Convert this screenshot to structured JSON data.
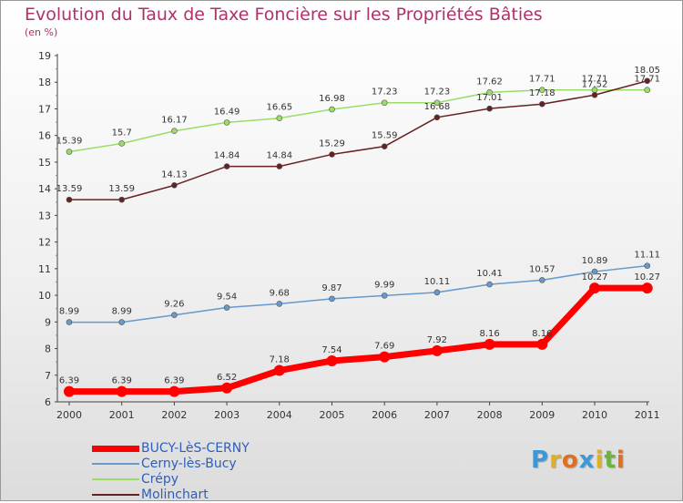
{
  "chart_data": {
    "type": "line",
    "title": "Evolution du Taux de Taxe Foncière sur les Propriétés Bâties",
    "ylabel": "(en %)",
    "xlabel": "",
    "x": [
      "2000",
      "2001",
      "2002",
      "2003",
      "2004",
      "2005",
      "2006",
      "2007",
      "2008",
      "2009",
      "2010",
      "2011"
    ],
    "ylim": [
      6,
      19
    ],
    "yticks": [
      "6",
      "7",
      "8",
      "9",
      "10",
      "11",
      "12",
      "13",
      "14",
      "15",
      "16",
      "17",
      "18",
      "19"
    ],
    "grid": false,
    "series": [
      {
        "name": "BUCY-LèS-CERNY",
        "color": "#ff0000",
        "values": [
          6.39,
          6.39,
          6.39,
          6.52,
          7.18,
          7.54,
          7.69,
          7.92,
          8.16,
          8.16,
          10.27,
          10.27
        ],
        "labels": [
          "6.39",
          "6.39",
          "6.39",
          "6.52",
          "7.18",
          "7.54",
          "7.69",
          "7.92",
          "8.16",
          "8.16",
          "10.27",
          "10.27"
        ]
      },
      {
        "name": "Cerny-lès-Bucy",
        "color": "#6699cc",
        "values": [
          8.99,
          8.99,
          9.26,
          9.54,
          9.68,
          9.87,
          9.99,
          10.11,
          10.41,
          10.57,
          10.89,
          11.11
        ],
        "labels": [
          "8.99",
          "8.99",
          "9.26",
          "9.54",
          "9.68",
          "9.87",
          "9.99",
          "10.11",
          "10.41",
          "10.57",
          "10.89",
          "11.11"
        ]
      },
      {
        "name": "Crépy",
        "color": "#99dd66",
        "values": [
          15.39,
          15.7,
          16.17,
          16.49,
          16.65,
          16.98,
          17.23,
          17.23,
          17.62,
          17.71,
          17.71,
          17.71
        ],
        "labels": [
          "15.39",
          "15.7",
          "16.17",
          "16.49",
          "16.65",
          "16.98",
          "17.23",
          "17.23",
          "17.62",
          "17.71",
          "17.71",
          "17.71"
        ]
      },
      {
        "name": "Molinchart",
        "color": "#662222",
        "values": [
          13.59,
          13.59,
          14.13,
          14.84,
          14.84,
          15.29,
          15.59,
          16.68,
          17.01,
          17.18,
          17.52,
          18.05
        ],
        "labels": [
          "13.59",
          "13.59",
          "14.13",
          "14.84",
          "14.84",
          "15.29",
          "15.59",
          "16.68",
          "17.01",
          "17.18",
          "17.52",
          "18.05"
        ]
      }
    ]
  },
  "logo": {
    "letters": [
      "P",
      "r",
      "o",
      "x",
      "i",
      "t",
      "i"
    ],
    "colors": [
      "#3a9ad9",
      "#e0b020",
      "#e07020",
      "#3a9ad9",
      "#e0b020",
      "#6cb33f",
      "#e07020"
    ]
  }
}
